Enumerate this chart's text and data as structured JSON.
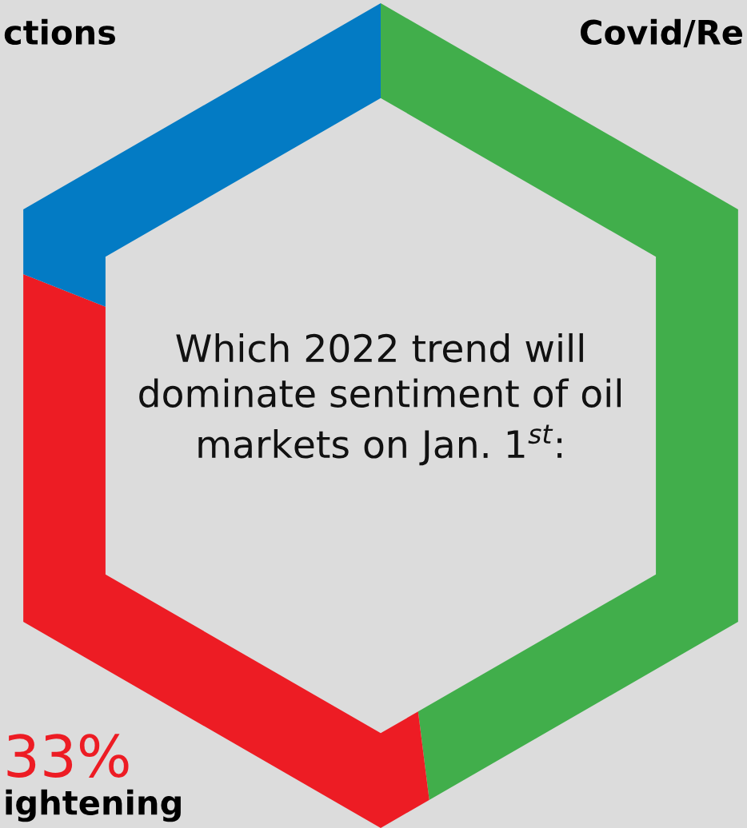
{
  "chart_data": {
    "type": "donut",
    "title": "Which 2022 trend will dominate sentiment of oil markets on Jan. 1$^{st}$:",
    "categories": [
      "Covid/Re",
      "ightening",
      "ctions"
    ],
    "values": [
      48,
      33,
      19
    ],
    "colors": [
      "#41ae4b",
      "#ed1c24",
      "#037bc4"
    ],
    "value_labels": [
      null,
      "33%",
      null
    ]
  }
}
